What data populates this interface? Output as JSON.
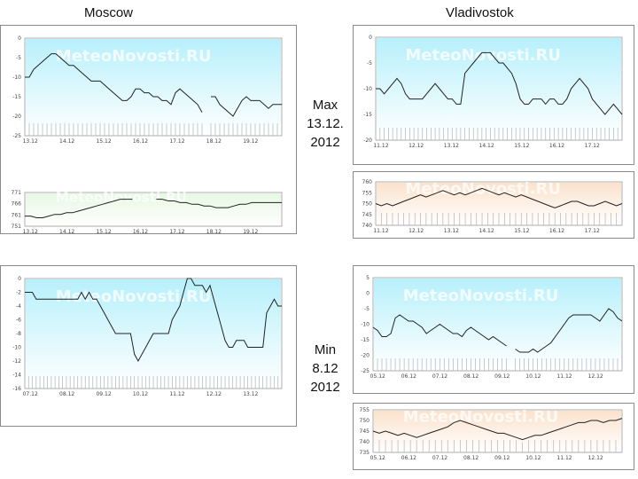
{
  "header": {
    "left_city": "Moscow",
    "right_city": "Vladivostok"
  },
  "labels": {
    "max": [
      "Max",
      "13.12.",
      "2012"
    ],
    "min": [
      "Min",
      "8.12",
      "2012"
    ]
  },
  "watermark": "MeteoNovosti.RU",
  "colors": {
    "temp_fill": "#b7f0fb",
    "press_fill_green": "#e6f8e3",
    "press_fill_peach": "#fbe2cc",
    "line": "#222222"
  },
  "chart_data": [
    {
      "id": "moscow-max-temp",
      "type": "area",
      "ylim": [
        -25,
        0
      ],
      "yticks": [
        "0",
        "-5",
        "-10",
        "-15",
        "-20",
        "-25"
      ],
      "xticks": [
        "13.12",
        "14.12",
        "15.12",
        "16.12",
        "17.12",
        "18.12",
        "19.12"
      ],
      "values": [
        -10,
        -10,
        -8,
        -7,
        -6,
        -5,
        -4,
        -4,
        -5,
        -6,
        -7,
        -7,
        -8,
        -9,
        -10,
        -11,
        -11,
        -11,
        -12,
        -13,
        -14,
        -15,
        -16,
        -16,
        -15,
        -13,
        -13,
        -14,
        -14,
        -15,
        -15,
        -16,
        -16,
        -17,
        -14,
        -13,
        -14,
        -15,
        -16,
        -17,
        -19,
        null,
        -15,
        -15,
        -17,
        -18,
        -19,
        -20,
        -18,
        -16,
        -15,
        -16,
        -16,
        -16,
        -17,
        -18,
        -17,
        -17,
        -17
      ]
    },
    {
      "id": "moscow-max-press",
      "type": "area",
      "ylim": [
        751,
        771
      ],
      "yticks": [
        "771",
        "766",
        "761",
        "751"
      ],
      "xticks": [
        "13.12",
        "14.12",
        "15.12",
        "16.12",
        "17.12",
        "18.12",
        "19.12"
      ],
      "values": [
        757,
        757,
        756,
        756,
        757,
        758,
        758,
        759,
        759,
        760,
        761,
        762,
        763,
        764,
        765,
        766,
        767,
        767,
        767,
        null,
        null,
        null,
        767,
        767,
        766,
        766,
        765,
        765,
        764,
        764,
        763,
        763,
        762,
        762,
        762,
        763,
        764,
        764,
        765,
        765,
        765,
        765,
        765,
        765
      ]
    },
    {
      "id": "vlad-max-temp",
      "type": "area",
      "ylim": [
        -20,
        0
      ],
      "yticks": [
        "0",
        "-5",
        "-10",
        "-15",
        "-20"
      ],
      "xticks": [
        "11.12",
        "12.12",
        "13.12",
        "14.12",
        "15.12",
        "16.12",
        "17.12"
      ],
      "values": [
        -10,
        -10,
        -11,
        -10,
        -9,
        -8,
        -9,
        -11,
        -12,
        -12,
        -12,
        -12,
        -11,
        -10,
        -9,
        -10,
        -11,
        -12,
        -12,
        -13,
        -13,
        -7,
        -6,
        -5,
        -4,
        -3,
        -3,
        -3,
        -4,
        -5,
        -5,
        -6,
        -7,
        -9,
        -12,
        -13,
        -13,
        -12,
        -12,
        -12,
        -13,
        -12,
        -12,
        -13,
        -13,
        -12,
        -10,
        -9,
        -8,
        -9,
        -10,
        -12,
        -13,
        -14,
        -15,
        -14,
        -13,
        -14,
        -15
      ]
    },
    {
      "id": "vlad-max-press",
      "type": "area",
      "ylim": [
        740,
        760
      ],
      "yticks": [
        "760",
        "755",
        "750",
        "745",
        "740"
      ],
      "xticks": [
        "11.12",
        "12.12",
        "13.12",
        "14.12",
        "15.12",
        "16.12",
        "17.12"
      ],
      "values": [
        750,
        749,
        750,
        749,
        750,
        751,
        752,
        753,
        754,
        753,
        754,
        755,
        756,
        755,
        754,
        755,
        754,
        755,
        756,
        757,
        756,
        755,
        754,
        755,
        754,
        753,
        754,
        753,
        752,
        751,
        750,
        749,
        748,
        749,
        750,
        751,
        751,
        750,
        749,
        749,
        750,
        751,
        750,
        749,
        750
      ]
    },
    {
      "id": "moscow-min-temp",
      "type": "area",
      "ylim": [
        -16,
        0
      ],
      "yticks": [
        "0",
        "-2",
        "-4",
        "-6",
        "-8",
        "-10",
        "-12",
        "-14",
        "-16"
      ],
      "xticks": [
        "07.12",
        "08.12",
        "09.12",
        "10.12",
        "11.12",
        "12.12",
        "13.12"
      ],
      "values": [
        -2,
        -2,
        -2,
        -3,
        -3,
        -3,
        -3,
        -3,
        -3,
        -3,
        -3,
        -3,
        -3,
        -3,
        -3,
        -2,
        -3,
        -2,
        -3,
        -3,
        -4,
        -5,
        -6,
        -7,
        -8,
        -8,
        -8,
        -8,
        -8,
        -11,
        -12,
        -11,
        -10,
        -9,
        -8,
        -8,
        -8,
        -8,
        -8,
        -6,
        -5,
        -4,
        -2,
        0,
        0,
        -1,
        -1,
        -1,
        -2,
        -1,
        -3,
        -5,
        -7,
        -9,
        -10,
        -10,
        -9,
        -9,
        -9,
        -10,
        -10,
        -10,
        -10,
        -10,
        -5,
        -4,
        -3,
        -4,
        -4
      ]
    },
    {
      "id": "vlad-min-temp",
      "type": "area",
      "ylim": [
        -25,
        5
      ],
      "yticks": [
        "5",
        "0",
        "-5",
        "-10",
        "-15",
        "-20",
        "-25"
      ],
      "xticks": [
        "05.12",
        "06.12",
        "07.12",
        "08.12",
        "09.12",
        "10.12",
        "11.12",
        "12.12"
      ],
      "values": [
        -11,
        -12,
        -14,
        -14,
        -13,
        -8,
        -7,
        -8,
        -9,
        -9,
        -10,
        -11,
        -13,
        -12,
        -11,
        -10,
        -11,
        -12,
        -13,
        -13,
        -14,
        -12,
        -11,
        -12,
        -13,
        -14,
        -15,
        -14,
        -15,
        -16,
        -17,
        null,
        -18,
        -19,
        -19,
        -19,
        -18,
        -19,
        -18,
        -17,
        -16,
        -14,
        -12,
        -10,
        -8,
        -7,
        -7,
        -7,
        -7,
        -7,
        -8,
        -9,
        -7,
        -5,
        -6,
        -8,
        -9
      ]
    },
    {
      "id": "vlad-min-press",
      "type": "area",
      "ylim": [
        735,
        755
      ],
      "yticks": [
        "755",
        "750",
        "745",
        "740",
        "735"
      ],
      "xticks": [
        "05.12",
        "06.12",
        "07.12",
        "08.12",
        "09.12",
        "10.12",
        "11.12",
        "12.12"
      ],
      "values": [
        745,
        744,
        745,
        744,
        743,
        744,
        743,
        742,
        743,
        744,
        745,
        746,
        747,
        749,
        750,
        749,
        748,
        747,
        746,
        745,
        744,
        744,
        743,
        742,
        741,
        742,
        743,
        743,
        744,
        745,
        746,
        747,
        748,
        749,
        749,
        750,
        750,
        749,
        750,
        750,
        751
      ]
    }
  ]
}
